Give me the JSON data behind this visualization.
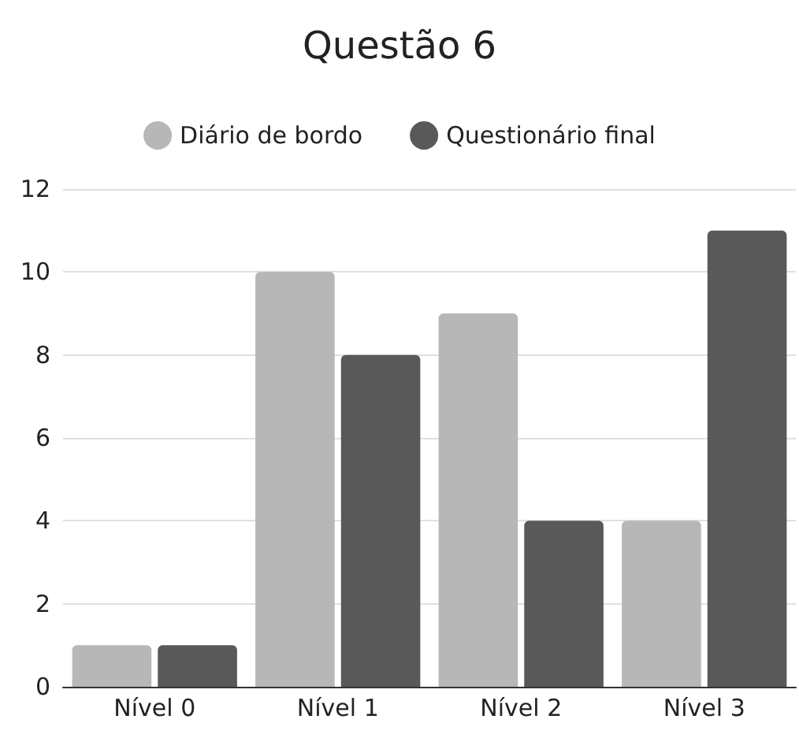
{
  "chart_data": {
    "type": "bar",
    "title": "Questão 6",
    "categories": [
      "Nível 0",
      "Nível 1",
      "Nível 2",
      "Nível 3"
    ],
    "series": [
      {
        "name": "Diário de bordo",
        "color": "#b7b7b7",
        "values": [
          1,
          10,
          9,
          4
        ]
      },
      {
        "name": "Questionário final",
        "color": "#595959",
        "values": [
          1,
          8,
          4,
          11
        ]
      }
    ],
    "ylim": [
      0,
      12
    ],
    "yticks": [
      0,
      2,
      4,
      6,
      8,
      10,
      12
    ],
    "grid": "y",
    "legend": "top"
  }
}
